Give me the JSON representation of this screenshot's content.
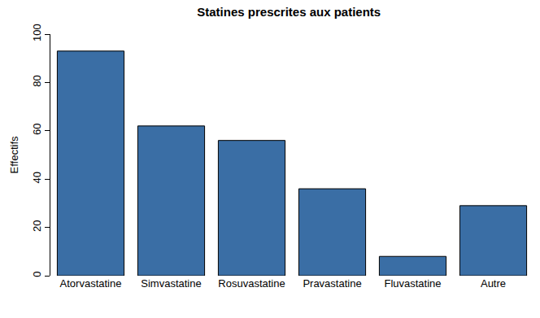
{
  "chart_data": {
    "type": "bar",
    "title": "Statines prescrites aux patients",
    "y_label": "Effectifs",
    "categories": [
      "Atorvastatine",
      "Simvastatine",
      "Rosuvastatine",
      "Pravastatine",
      "Fluvastatine",
      "Autre"
    ],
    "values": [
      93,
      62,
      56,
      36,
      8,
      29
    ],
    "color": "#3a6ea5",
    "ylim": [
      0,
      100
    ],
    "yticks": [
      0,
      20,
      40,
      60,
      80,
      100
    ],
    "grid": false
  }
}
